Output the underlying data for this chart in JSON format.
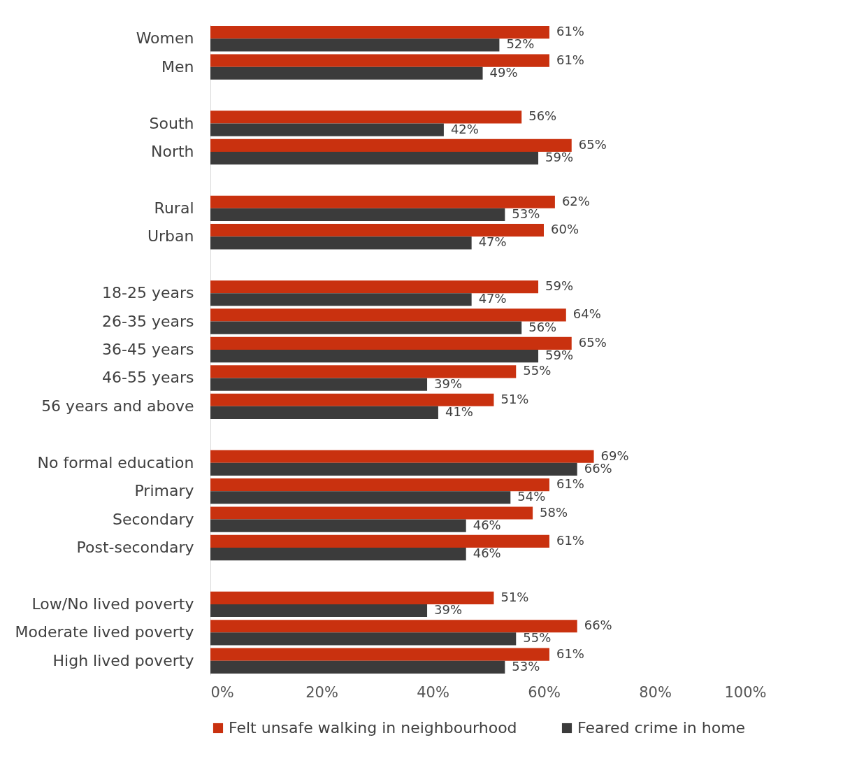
{
  "chart_data": {
    "type": "bar",
    "orientation": "horizontal",
    "categories": [
      "Women",
      "Men",
      null,
      "South",
      "North",
      null,
      "Rural",
      "Urban",
      null,
      "18-25 years",
      "26-35 years",
      "36-45 years",
      "46-55 years",
      "56 years and above",
      null,
      "No formal education",
      "Primary",
      "Secondary",
      "Post-secondary",
      null,
      "Low/No lived poverty",
      "Moderate lived poverty",
      "High lived poverty"
    ],
    "series": [
      {
        "name": "Felt unsafe walking in neighbourhood",
        "color": "#c9310f",
        "values": [
          61,
          61,
          null,
          56,
          65,
          null,
          62,
          60,
          null,
          59,
          64,
          65,
          55,
          51,
          null,
          69,
          61,
          58,
          61,
          null,
          51,
          66,
          61
        ],
        "value_labels": [
          "61%",
          "61%",
          null,
          "56%",
          "65%",
          null,
          "62%",
          "60%",
          null,
          "59%",
          "64%",
          "65%",
          "55%",
          "51%",
          null,
          "69%",
          "61%",
          "58%",
          "61%",
          null,
          "51%",
          "66%",
          "61%"
        ]
      },
      {
        "name": "Feared crime in home",
        "color": "#3b3b3b",
        "values": [
          52,
          49,
          null,
          42,
          59,
          null,
          53,
          47,
          null,
          47,
          56,
          59,
          39,
          41,
          null,
          66,
          54,
          46,
          46,
          null,
          39,
          55,
          53
        ],
        "value_labels": [
          "52%",
          "49%",
          null,
          "42%",
          "59%",
          null,
          "53%",
          "47%",
          null,
          "47%",
          "56%",
          "59%",
          "39%",
          "41%",
          null,
          "66%",
          "54%",
          "46%",
          "46%",
          null,
          "39%",
          "55%",
          "53%"
        ]
      }
    ],
    "xlim": [
      0,
      100
    ],
    "xticks": [
      {
        "value": 0,
        "label": "0%"
      },
      {
        "value": 20,
        "label": "20%"
      },
      {
        "value": 40,
        "label": "40%"
      },
      {
        "value": 60,
        "label": "60%"
      },
      {
        "value": 80,
        "label": "80%"
      },
      {
        "value": 100,
        "label": "100%"
      }
    ],
    "grid": false,
    "legend": "bottom"
  }
}
